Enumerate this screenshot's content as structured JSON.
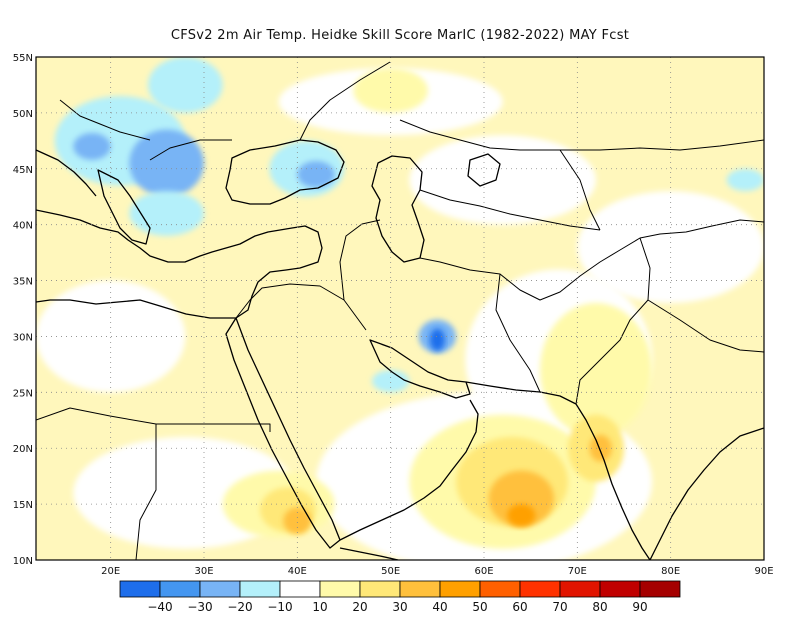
{
  "title": "CFSv2  2m Air Temp. Heidke Skill Score MarIC (1982-2022) MAY Fcst",
  "map": {
    "lon_range": [
      12,
      90
    ],
    "lat_range": [
      10,
      55
    ],
    "lat_ticks": [
      {
        "v": 55,
        "label": "55N"
      },
      {
        "v": 50,
        "label": "50N"
      },
      {
        "v": 45,
        "label": "45N"
      },
      {
        "v": 40,
        "label": "40N"
      },
      {
        "v": 35,
        "label": "35N"
      },
      {
        "v": 30,
        "label": "30N"
      },
      {
        "v": 25,
        "label": "25N"
      },
      {
        "v": 20,
        "label": "20N"
      },
      {
        "v": 15,
        "label": "15N"
      },
      {
        "v": 10,
        "label": "10N"
      }
    ],
    "lon_ticks": [
      {
        "v": 20,
        "label": "20E"
      },
      {
        "v": 30,
        "label": "30E"
      },
      {
        "v": 40,
        "label": "40E"
      },
      {
        "v": 50,
        "label": "50E"
      },
      {
        "v": 60,
        "label": "60E"
      },
      {
        "v": 70,
        "label": "70E"
      },
      {
        "v": 80,
        "label": "80E"
      },
      {
        "v": 90,
        "label": "90E"
      }
    ],
    "grid": "dotted",
    "features": [
      {
        "type": "blob",
        "lon": 21,
        "lat": 47.5,
        "rx": 7,
        "ry": 4,
        "level": "-10"
      },
      {
        "type": "blob",
        "lon": 26,
        "lat": 45.5,
        "rx": 4,
        "ry": 3,
        "level": "-20"
      },
      {
        "type": "blob",
        "lon": 18,
        "lat": 47,
        "rx": 2,
        "ry": 1.2,
        "level": "-20"
      },
      {
        "type": "blob",
        "lon": 28,
        "lat": 52.5,
        "rx": 4,
        "ry": 2.5,
        "level": "-10"
      },
      {
        "type": "blob",
        "lon": 41,
        "lat": 45,
        "rx": 4,
        "ry": 2.5,
        "level": "-10"
      },
      {
        "type": "blob",
        "lon": 42,
        "lat": 44.5,
        "rx": 2,
        "ry": 1.2,
        "level": "-20"
      },
      {
        "type": "blob",
        "lon": 26,
        "lat": 41,
        "rx": 4,
        "ry": 2,
        "level": "-10"
      },
      {
        "type": "blob",
        "lon": 55,
        "lat": 30,
        "rx": 2,
        "ry": 1.5,
        "level": "-20"
      },
      {
        "type": "blob",
        "lon": 55,
        "lat": 29.7,
        "rx": 0.8,
        "ry": 1,
        "level": "-40"
      },
      {
        "type": "blob",
        "lon": 50,
        "lat": 26,
        "rx": 2,
        "ry": 1,
        "level": "-10"
      },
      {
        "type": "blob",
        "lon": 88,
        "lat": 44,
        "rx": 2,
        "ry": 1,
        "level": "-10"
      },
      {
        "type": "blob",
        "lon": 50,
        "lat": 51,
        "rx": 12,
        "ry": 3,
        "level": "10"
      },
      {
        "type": "blob",
        "lon": 62,
        "lat": 44,
        "rx": 10,
        "ry": 4,
        "level": "10"
      },
      {
        "type": "blob",
        "lon": 80,
        "lat": 38,
        "rx": 10,
        "ry": 5,
        "level": "10"
      },
      {
        "type": "blob",
        "lon": 20,
        "lat": 30,
        "rx": 8,
        "ry": 5,
        "level": "10"
      },
      {
        "type": "blob",
        "lon": 68,
        "lat": 28,
        "rx": 10,
        "ry": 8,
        "level": "10"
      },
      {
        "type": "blob",
        "lon": 60,
        "lat": 17,
        "rx": 18,
        "ry": 8,
        "level": "10"
      },
      {
        "type": "blob",
        "lon": 28,
        "lat": 16,
        "rx": 12,
        "ry": 5,
        "level": "10"
      },
      {
        "type": "blob",
        "lon": 72,
        "lat": 27,
        "rx": 6,
        "ry": 6,
        "level": "20"
      },
      {
        "type": "blob",
        "lon": 62,
        "lat": 17,
        "rx": 10,
        "ry": 6,
        "level": "20"
      },
      {
        "type": "blob",
        "lon": 38,
        "lat": 15,
        "rx": 6,
        "ry": 3,
        "level": "20"
      },
      {
        "type": "blob",
        "lon": 50,
        "lat": 52,
        "rx": 4,
        "ry": 2,
        "level": "20"
      },
      {
        "type": "blob",
        "lon": 63,
        "lat": 17,
        "rx": 6,
        "ry": 4,
        "level": "30"
      },
      {
        "type": "blob",
        "lon": 72,
        "lat": 20,
        "rx": 3,
        "ry": 3,
        "level": "30"
      },
      {
        "type": "blob",
        "lon": 39,
        "lat": 14.5,
        "rx": 3,
        "ry": 2,
        "level": "30"
      },
      {
        "type": "blob",
        "lon": 64,
        "lat": 15.5,
        "rx": 3.5,
        "ry": 2.5,
        "level": "40"
      },
      {
        "type": "blob",
        "lon": 72.5,
        "lat": 20,
        "rx": 1.2,
        "ry": 1.2,
        "level": "40"
      },
      {
        "type": "blob",
        "lon": 40,
        "lat": 13.5,
        "rx": 1.5,
        "ry": 1.2,
        "level": "40"
      },
      {
        "type": "blob",
        "lon": 64,
        "lat": 14,
        "rx": 1.5,
        "ry": 1,
        "level": "50"
      }
    ]
  },
  "colorbar": {
    "levels": [
      {
        "label": "-40",
        "color": "#1e6eeb"
      },
      {
        "label": "-30",
        "color": "#4496f0"
      },
      {
        "label": "-20",
        "color": "#78b4f5"
      },
      {
        "label": "-10",
        "color": "#b4f0fa"
      },
      {
        "label": "10",
        "color": "#ffffff"
      },
      {
        "label": "20",
        "color": "#fffaaa"
      },
      {
        "label": "30",
        "color": "#ffe878"
      },
      {
        "label": "40",
        "color": "#ffc03c"
      },
      {
        "label": "50",
        "color": "#ffa000"
      },
      {
        "label": "60",
        "color": "#ff6000"
      },
      {
        "label": "70",
        "color": "#ff3200"
      },
      {
        "label": "80",
        "color": "#e11400"
      },
      {
        "label": "90",
        "color": "#c00000"
      },
      {
        "label": "",
        "color": "#a50000"
      }
    ]
  }
}
